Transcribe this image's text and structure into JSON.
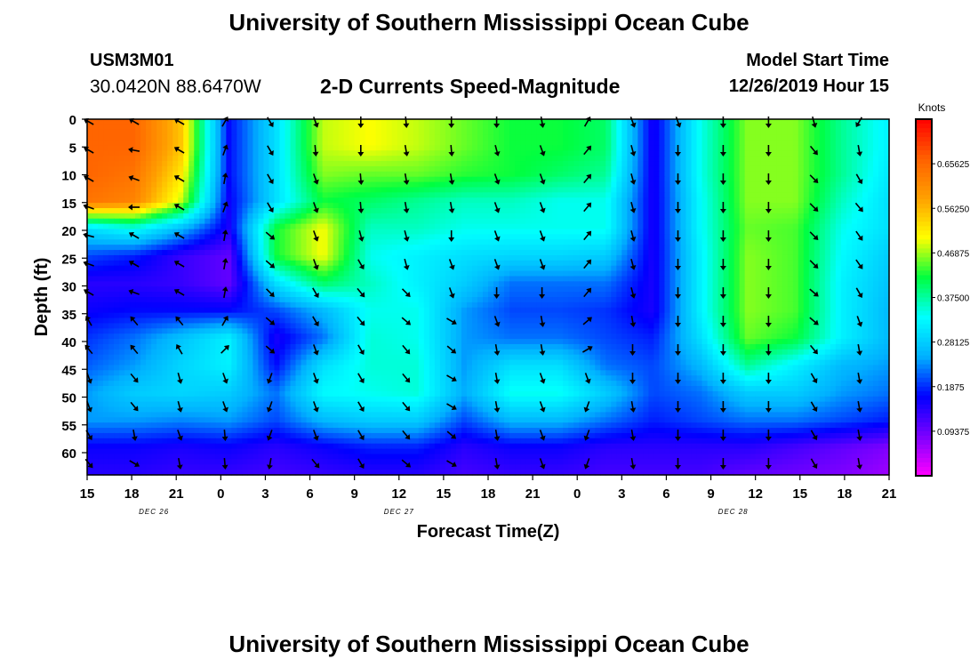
{
  "page": {
    "title": "University of Southern Mississippi Ocean Cube",
    "footer_title": "University of Southern Mississippi Ocean Cube",
    "station_id": "USM3M01",
    "station_coords": "30.0420N 88.6470W",
    "plot_title": "2-D Currents Speed-Magnitude",
    "model_start_label": "Model Start Time",
    "model_start_value": "12/26/2019 Hour 15"
  },
  "chart_data": {
    "type": "heatmap",
    "title": "2-D Currents Speed-Magnitude",
    "xlabel": "Forecast Time(Z)",
    "ylabel": "Depth (ft)",
    "x_tick_labels": [
      "15",
      "18",
      "21",
      "0",
      "3",
      "6",
      "9",
      "12",
      "15",
      "18",
      "21",
      "0",
      "3",
      "6",
      "9",
      "12",
      "15",
      "18",
      "21"
    ],
    "date_labels": [
      {
        "text": "DEC 26",
        "tick_index": 1.5
      },
      {
        "text": "DEC 27",
        "tick_index": 7
      },
      {
        "text": "DEC 28",
        "tick_index": 14.5
      }
    ],
    "y_ticks": [
      0,
      5,
      10,
      15,
      20,
      25,
      30,
      35,
      40,
      45,
      50,
      55,
      60
    ],
    "ylim": [
      0,
      64
    ],
    "colorbar": {
      "label": "Knots",
      "range": [
        0,
        0.75
      ],
      "tick_values": [
        0.09375,
        0.1875,
        0.28125,
        0.375,
        0.46875,
        0.5625,
        0.65625
      ],
      "tick_labels": [
        "0.09375",
        "0.1875",
        "0.28125",
        "0.37500",
        "0.46875",
        "0.56250",
        "0.65625"
      ],
      "colors": [
        "#ff00ff",
        "#7a00ff",
        "#0000ff",
        "#00b0ff",
        "#00ffff",
        "#00ff40",
        "#ffff00",
        "#ffa000",
        "#ff6000",
        "#ff0000"
      ]
    },
    "speed_knots": [
      [
        0.66,
        0.66,
        0.55,
        0.17,
        0.3,
        0.48,
        0.5,
        0.48,
        0.45,
        0.42,
        0.42,
        0.4,
        0.15,
        0.34,
        0.46,
        0.46,
        0.38,
        0.32
      ],
      [
        0.66,
        0.66,
        0.55,
        0.17,
        0.3,
        0.48,
        0.5,
        0.48,
        0.45,
        0.42,
        0.42,
        0.4,
        0.15,
        0.34,
        0.46,
        0.46,
        0.38,
        0.32
      ],
      [
        0.66,
        0.64,
        0.52,
        0.17,
        0.3,
        0.46,
        0.45,
        0.45,
        0.43,
        0.42,
        0.4,
        0.38,
        0.15,
        0.34,
        0.46,
        0.46,
        0.38,
        0.31
      ],
      [
        0.64,
        0.62,
        0.48,
        0.16,
        0.3,
        0.42,
        0.4,
        0.38,
        0.36,
        0.36,
        0.34,
        0.34,
        0.15,
        0.33,
        0.46,
        0.46,
        0.36,
        0.3
      ],
      [
        0.3,
        0.34,
        0.26,
        0.15,
        0.42,
        0.5,
        0.36,
        0.36,
        0.34,
        0.34,
        0.34,
        0.34,
        0.15,
        0.33,
        0.45,
        0.44,
        0.34,
        0.3
      ],
      [
        0.2,
        0.18,
        0.13,
        0.1,
        0.42,
        0.5,
        0.34,
        0.32,
        0.3,
        0.29,
        0.29,
        0.28,
        0.15,
        0.32,
        0.46,
        0.44,
        0.33,
        0.28
      ],
      [
        0.14,
        0.14,
        0.13,
        0.1,
        0.3,
        0.4,
        0.36,
        0.32,
        0.28,
        0.22,
        0.22,
        0.22,
        0.15,
        0.32,
        0.46,
        0.44,
        0.32,
        0.27
      ],
      [
        0.16,
        0.17,
        0.17,
        0.17,
        0.2,
        0.26,
        0.34,
        0.34,
        0.24,
        0.2,
        0.2,
        0.19,
        0.15,
        0.32,
        0.46,
        0.44,
        0.32,
        0.26
      ],
      [
        0.19,
        0.22,
        0.27,
        0.32,
        0.15,
        0.22,
        0.35,
        0.34,
        0.24,
        0.22,
        0.22,
        0.2,
        0.18,
        0.3,
        0.45,
        0.42,
        0.32,
        0.26
      ],
      [
        0.21,
        0.24,
        0.29,
        0.32,
        0.17,
        0.3,
        0.35,
        0.35,
        0.24,
        0.3,
        0.3,
        0.22,
        0.2,
        0.26,
        0.38,
        0.32,
        0.26,
        0.24
      ],
      [
        0.24,
        0.28,
        0.29,
        0.28,
        0.22,
        0.33,
        0.34,
        0.35,
        0.25,
        0.34,
        0.34,
        0.28,
        0.2,
        0.22,
        0.28,
        0.28,
        0.24,
        0.22
      ],
      [
        0.24,
        0.24,
        0.23,
        0.24,
        0.2,
        0.26,
        0.28,
        0.28,
        0.2,
        0.26,
        0.26,
        0.22,
        0.18,
        0.2,
        0.22,
        0.22,
        0.2,
        0.18
      ],
      [
        0.16,
        0.16,
        0.15,
        0.16,
        0.14,
        0.16,
        0.18,
        0.18,
        0.14,
        0.16,
        0.16,
        0.14,
        0.14,
        0.14,
        0.14,
        0.12,
        0.1,
        0.08
      ],
      [
        0.14,
        0.14,
        0.13,
        0.13,
        0.12,
        0.13,
        0.14,
        0.14,
        0.12,
        0.13,
        0.13,
        0.12,
        0.12,
        0.12,
        0.1,
        0.09,
        0.08,
        0.06
      ]
    ],
    "arrow_directions_deg": [
      [
        300,
        300,
        300,
        30,
        150,
        160,
        180,
        175,
        180,
        180,
        170,
        30,
        160,
        160,
        180,
        180,
        165,
        210
      ],
      [
        300,
        280,
        300,
        20,
        150,
        175,
        180,
        170,
        175,
        165,
        160,
        40,
        165,
        180,
        180,
        180,
        140,
        170
      ],
      [
        300,
        290,
        300,
        10,
        150,
        160,
        175,
        170,
        170,
        160,
        160,
        40,
        165,
        180,
        180,
        180,
        135,
        150
      ],
      [
        290,
        270,
        300,
        20,
        150,
        160,
        175,
        170,
        170,
        160,
        160,
        40,
        165,
        180,
        180,
        180,
        135,
        140
      ],
      [
        285,
        300,
        300,
        10,
        130,
        160,
        165,
        165,
        180,
        160,
        160,
        40,
        165,
        180,
        180,
        180,
        135,
        145
      ],
      [
        290,
        300,
        300,
        10,
        130,
        160,
        150,
        165,
        160,
        160,
        160,
        40,
        165,
        180,
        180,
        180,
        135,
        145
      ],
      [
        300,
        290,
        300,
        10,
        135,
        150,
        140,
        135,
        160,
        180,
        180,
        40,
        165,
        180,
        180,
        180,
        130,
        150
      ],
      [
        330,
        320,
        320,
        30,
        130,
        150,
        140,
        130,
        120,
        160,
        170,
        50,
        170,
        180,
        180,
        180,
        130,
        160
      ],
      [
        320,
        320,
        330,
        45,
        130,
        160,
        150,
        140,
        130,
        170,
        170,
        60,
        180,
        180,
        180,
        180,
        140,
        170
      ],
      [
        160,
        140,
        165,
        160,
        200,
        160,
        150,
        140,
        120,
        170,
        160,
        160,
        180,
        180,
        180,
        180,
        150,
        170
      ],
      [
        160,
        140,
        165,
        160,
        200,
        160,
        150,
        140,
        120,
        170,
        160,
        200,
        170,
        180,
        180,
        180,
        150,
        170
      ],
      [
        150,
        170,
        160,
        175,
        200,
        160,
        150,
        140,
        130,
        170,
        160,
        200,
        170,
        180,
        180,
        180,
        150,
        170
      ],
      [
        140,
        120,
        170,
        175,
        190,
        140,
        150,
        130,
        120,
        170,
        160,
        200,
        170,
        180,
        180,
        180,
        150,
        170
      ]
    ]
  }
}
